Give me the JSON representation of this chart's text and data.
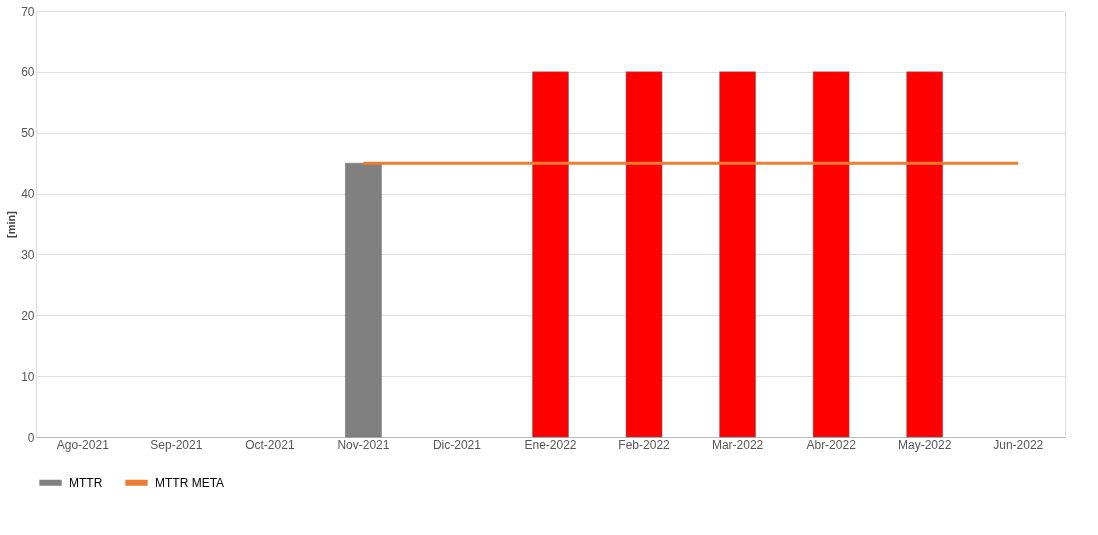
{
  "chart_data": {
    "type": "bar",
    "ylabel": "[min]",
    "categories": [
      "Ago-2021",
      "Sep-2021",
      "Oct-2021",
      "Nov-2021",
      "Dic-2021",
      "Ene-2022",
      "Feb-2022",
      "Mar-2022",
      "Abr-2022",
      "May-2022",
      "Jun-2022"
    ],
    "series": [
      {
        "name": "MTTR",
        "color": "#808080",
        "colors": [
          "#808080",
          "#808080",
          "#808080",
          "#808080",
          "#808080",
          "#ff0000",
          "#ff0000",
          "#ff0000",
          "#ff0000",
          "#ff0000",
          "#ff0000"
        ],
        "values": [
          null,
          null,
          null,
          45,
          null,
          60,
          60,
          60,
          60,
          60,
          null
        ]
      },
      {
        "name": "MTTR META",
        "type": "line",
        "color": "#ed7d31",
        "values": [
          null,
          null,
          null,
          45,
          45,
          45,
          45,
          45,
          45,
          45,
          45
        ]
      }
    ],
    "ylim": [
      0,
      70
    ],
    "yticks": [
      0,
      10,
      20,
      30,
      40,
      50,
      60,
      70
    ],
    "grid": "y",
    "legend": "bottom"
  }
}
